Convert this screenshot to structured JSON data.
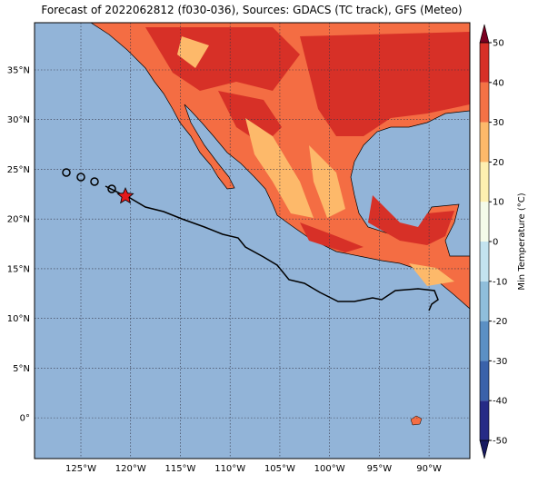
{
  "map": {
    "title": "Forecast of 2022062812 (f030-036), Sources: GDACS (TC track), GFS (Meteo)",
    "xlim": [
      -129.66,
      -85.9
    ],
    "ylim": [
      -4.1,
      39.75
    ],
    "lon_ticks": [
      {
        "value": -125,
        "label": "125°W"
      },
      {
        "value": -120,
        "label": "120°W"
      },
      {
        "value": -115,
        "label": "115°W"
      },
      {
        "value": -110,
        "label": "110°W"
      },
      {
        "value": -105,
        "label": "105°W"
      },
      {
        "value": -100,
        "label": "100°W"
      },
      {
        "value": -95,
        "label": "95°W"
      },
      {
        "value": -90,
        "label": "90°W"
      }
    ],
    "lat_ticks": [
      {
        "value": 0,
        "label": "0°"
      },
      {
        "value": 5,
        "label": "5°N"
      },
      {
        "value": 10,
        "label": "10°N"
      },
      {
        "value": 15,
        "label": "15°N"
      },
      {
        "value": 20,
        "label": "20°N"
      },
      {
        "value": 25,
        "label": "25°N"
      },
      {
        "value": 30,
        "label": "30°N"
      },
      {
        "value": 35,
        "label": "35°N"
      }
    ],
    "colorbar": {
      "label": "Min Temperature (°C)",
      "lim": [
        -50,
        50
      ],
      "ticks": [
        -50,
        -40,
        -30,
        -20,
        -10,
        0,
        10,
        20,
        30,
        40,
        50
      ],
      "colors": [
        "#262b86",
        "#3a62aa",
        "#5b90c4",
        "#8fbedb",
        "#c3e3ef",
        "#f4fbe9",
        "#fef0b0",
        "#fdb96a",
        "#f47245",
        "#d73027",
        "#a50026"
      ],
      "extend_colors": [
        "#171a60",
        "#7a0020"
      ]
    },
    "grid": true
  }
}
